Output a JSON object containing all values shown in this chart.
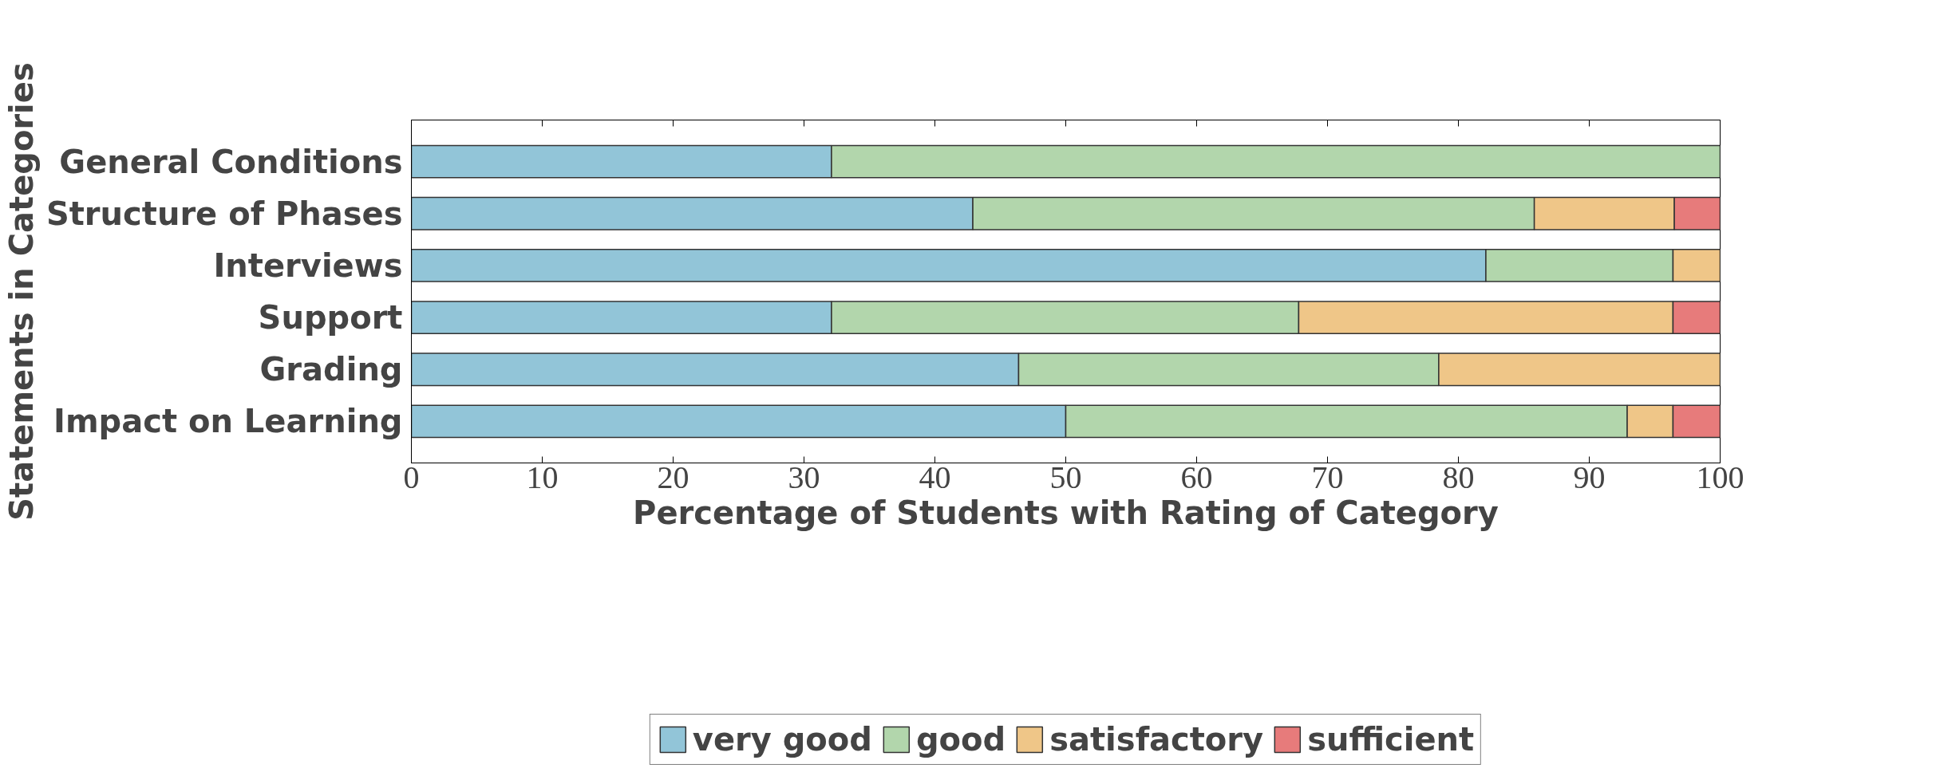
{
  "chart_data": {
    "type": "bar",
    "orientation": "horizontal",
    "stacked": true,
    "xlabel": "Percentage of Students with Rating of Category",
    "ylabel": "Statements in Categories",
    "categories": [
      "General Conditions",
      "Structure of Phases",
      "Interviews",
      "Support",
      "Grading",
      "Impact on Learning"
    ],
    "series": [
      {
        "name": "very good",
        "color": "#92c5d8",
        "values": [
          32.1,
          42.9,
          82.1,
          32.1,
          46.4,
          50.0
        ]
      },
      {
        "name": "good",
        "color": "#b2d6ac",
        "values": [
          67.9,
          42.9,
          14.3,
          35.7,
          32.1,
          42.9
        ]
      },
      {
        "name": "satisfactory",
        "color": "#efc688",
        "values": [
          null,
          10.7,
          3.6,
          28.6,
          21.5,
          3.5
        ]
      },
      {
        "name": "sufficient",
        "color": "#e77b7b",
        "values": [
          null,
          3.5,
          null,
          3.6,
          null,
          3.6
        ]
      }
    ],
    "xlim": [
      0,
      100
    ],
    "xticks": [
      0,
      10,
      20,
      30,
      40,
      50,
      60,
      70,
      80,
      90,
      100
    ],
    "grid": false,
    "legend": "bottom"
  }
}
